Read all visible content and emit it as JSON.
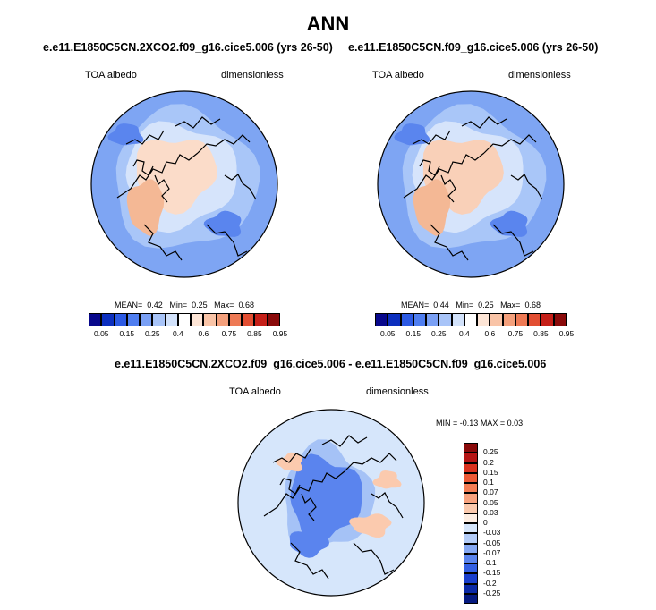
{
  "main_title": "ANN",
  "panels": [
    {
      "case": "e.e11.E1850C5CN.2XCO2.f09_g16.cice5.006 (yrs 26-50)",
      "variable": "TOA albedo",
      "units": "dimensionless",
      "mean_label": "MEAN=",
      "mean": "0.42",
      "min_label": "Min=",
      "min": "0.25",
      "max_label": "Max=",
      "max": "0.68"
    },
    {
      "case": "e.e11.E1850C5CN.f09_g16.cice5.006 (yrs 26-50)",
      "variable": "TOA albedo",
      "units": "dimensionless",
      "mean_label": "MEAN=",
      "mean": "0.44",
      "min_label": "Min=",
      "min": "0.25",
      "max_label": "Max=",
      "max": "0.68"
    }
  ],
  "abs_colorbar": {
    "ticks": [
      "0.05",
      "0.15",
      "0.25",
      "0.4",
      "0.6",
      "0.75",
      "0.85",
      "0.95"
    ],
    "colors": [
      "#08088c",
      "#0c2fbe",
      "#2c5ae3",
      "#4f7ef0",
      "#7aa0f5",
      "#a8c4f8",
      "#d2e2fb",
      "#ffffff",
      "#fde5d6",
      "#f9c4a7",
      "#f4a07c",
      "#ee7a55",
      "#e24e32",
      "#c51f18",
      "#8a0a0a"
    ]
  },
  "diff_panel": {
    "title": "e.e11.E1850C5CN.2XCO2.f09_g16.cice5.006 - e.e11.E1850C5CN.f09_g16.cice5.006",
    "variable": "TOA albedo",
    "units": "dimensionless",
    "min_label": "MIN =",
    "min": "-0.13",
    "max_label": "MAX =",
    "max": "0.03"
  },
  "diff_colorbar": {
    "ticks": [
      "0.25",
      "0.2",
      "0.15",
      "0.1",
      "0.07",
      "0.05",
      "0.03",
      "0",
      "-0.03",
      "-0.05",
      "-0.07",
      "-0.1",
      "-0.15",
      "-0.2",
      "-0.25"
    ],
    "colors": [
      "#8a0a0a",
      "#b51515",
      "#d9321f",
      "#ec5a36",
      "#f47e55",
      "#f8a37f",
      "#fbcaae",
      "#fdeee3",
      "#d6e6fb",
      "#b3ccf8",
      "#85a8f3",
      "#5a84ee",
      "#3360e4",
      "#1a3fcc",
      "#0c2aa6",
      "#061a80"
    ]
  },
  "icons": {
    "map": "polar-stereographic-map"
  }
}
